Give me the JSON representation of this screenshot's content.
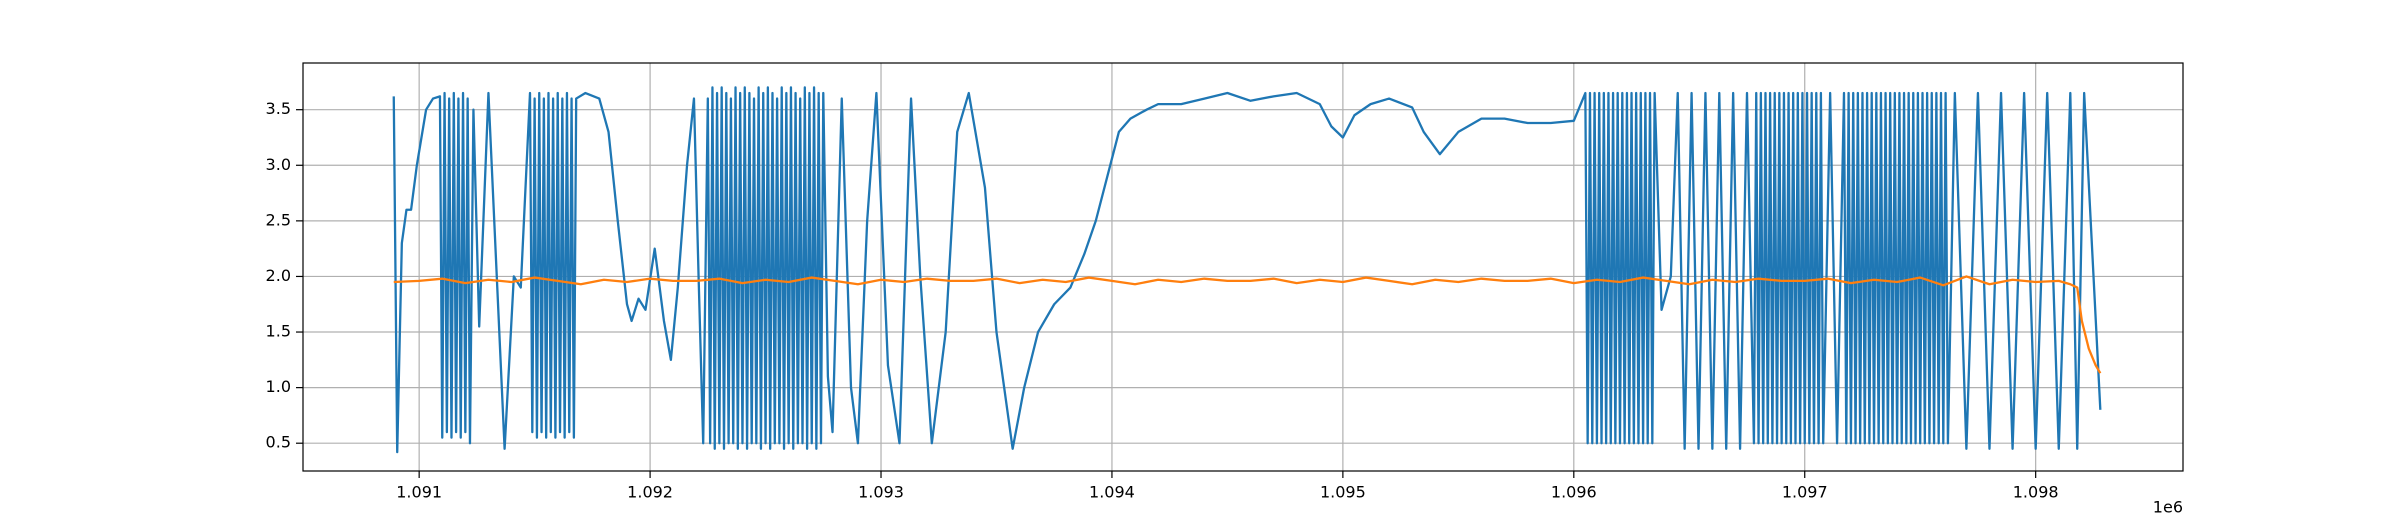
{
  "chart_data": {
    "type": "line",
    "grid": true,
    "xlim": [
      1090497,
      1098638
    ],
    "ylim": [
      0.25,
      3.92
    ],
    "xticks": [
      {
        "value": 1091000,
        "label": "1.091"
      },
      {
        "value": 1092000,
        "label": "1.092"
      },
      {
        "value": 1093000,
        "label": "1.093"
      },
      {
        "value": 1094000,
        "label": "1.094"
      },
      {
        "value": 1095000,
        "label": "1.095"
      },
      {
        "value": 1096000,
        "label": "1.096"
      },
      {
        "value": 1097000,
        "label": "1.097"
      },
      {
        "value": 1098000,
        "label": "1.098"
      }
    ],
    "x_offset_text": "1e6",
    "yticks": [
      0.5,
      {
        "value": 1,
        "label": "1.0"
      },
      1.5,
      {
        "value": 2,
        "label": "2.0"
      },
      2.5,
      {
        "value": 3,
        "label": "3.0"
      },
      3.5
    ],
    "series": [
      {
        "color": "#1f77b4",
        "x": [
          1090890,
          1090905,
          1090925,
          1090945,
          1090965,
          1090990,
          1091030,
          1091060,
          1091090,
          1091100,
          1091110,
          1091120,
          1091130,
          1091140,
          1091150,
          1091160,
          1091170,
          1091180,
          1091190,
          1091200,
          1091210,
          1091220,
          1091235,
          1091260,
          1091300,
          1091370,
          1091410,
          1091440,
          1091480,
          1091490,
          1091500,
          1091510,
          1091520,
          1091530,
          1091540,
          1091550,
          1091560,
          1091570,
          1091580,
          1091590,
          1091600,
          1091610,
          1091620,
          1091630,
          1091640,
          1091650,
          1091660,
          1091670,
          1091680,
          1091720,
          1091780,
          1091820,
          1091860,
          1091900,
          1091920,
          1091950,
          1091980,
          1092020,
          1092060,
          1092090,
          1092120,
          1092160,
          1092190,
          1092210,
          1092230,
          1092250,
          1092260,
          1092270,
          1092280,
          1092290,
          1092300,
          1092310,
          1092320,
          1092330,
          1092340,
          1092350,
          1092360,
          1092370,
          1092380,
          1092390,
          1092400,
          1092410,
          1092420,
          1092430,
          1092440,
          1092450,
          1092460,
          1092470,
          1092480,
          1092490,
          1092500,
          1092510,
          1092520,
          1092530,
          1092540,
          1092550,
          1092560,
          1092570,
          1092580,
          1092590,
          1092600,
          1092610,
          1092620,
          1092630,
          1092640,
          1092650,
          1092660,
          1092670,
          1092680,
          1092690,
          1092700,
          1092710,
          1092720,
          1092730,
          1092740,
          1092750,
          1092770,
          1092790,
          1092830,
          1092870,
          1092900,
          1092940,
          1092980,
          1093030,
          1093080,
          1093130,
          1093170,
          1093220,
          1093280,
          1093330,
          1093380,
          1093450,
          1093500,
          1093570,
          1093620,
          1093680,
          1093750,
          1093820,
          1093880,
          1093930,
          1093980,
          1094030,
          1094080,
          1094150,
          1094200,
          1094300,
          1094400,
          1094500,
          1094600,
          1094700,
          1094800,
          1094900,
          1094950,
          1095000,
          1095050,
          1095120,
          1095200,
          1095300,
          1095350,
          1095420,
          1095500,
          1095600,
          1095700,
          1095800,
          1095900,
          1096000,
          1096050,
          1096060,
          1096070,
          1096080,
          1096090,
          1096100,
          1096110,
          1096120,
          1096130,
          1096140,
          1096150,
          1096160,
          1096170,
          1096180,
          1096190,
          1096200,
          1096210,
          1096220,
          1096230,
          1096240,
          1096250,
          1096260,
          1096270,
          1096280,
          1096290,
          1096300,
          1096310,
          1096320,
          1096330,
          1096340,
          1096350,
          1096380,
          1096420,
          1096450,
          1096480,
          1096510,
          1096540,
          1096570,
          1096600,
          1096630,
          1096660,
          1096690,
          1096720,
          1096750,
          1096780,
          1096790,
          1096800,
          1096810,
          1096820,
          1096830,
          1096840,
          1096850,
          1096860,
          1096870,
          1096880,
          1096890,
          1096900,
          1096910,
          1096920,
          1096930,
          1096940,
          1096950,
          1096960,
          1096970,
          1096980,
          1096990,
          1097000,
          1097010,
          1097020,
          1097030,
          1097040,
          1097050,
          1097060,
          1097070,
          1097080,
          1097110,
          1097140,
          1097170,
          1097180,
          1097190,
          1097200,
          1097210,
          1097220,
          1097230,
          1097240,
          1097250,
          1097260,
          1097270,
          1097280,
          1097290,
          1097300,
          1097310,
          1097320,
          1097330,
          1097340,
          1097350,
          1097360,
          1097370,
          1097380,
          1097390,
          1097400,
          1097410,
          1097420,
          1097430,
          1097440,
          1097450,
          1097460,
          1097470,
          1097480,
          1097490,
          1097500,
          1097510,
          1097520,
          1097530,
          1097540,
          1097550,
          1097560,
          1097570,
          1097580,
          1097590,
          1097600,
          1097610,
          1097620,
          1097650,
          1097700,
          1097750,
          1097800,
          1097850,
          1097900,
          1097950,
          1098000,
          1098050,
          1098100,
          1098150,
          1098180,
          1098210,
          1098280
        ],
        "values": [
          3.62,
          0.42,
          2.3,
          2.6,
          2.6,
          3.0,
          3.5,
          3.6,
          3.62,
          0.55,
          3.65,
          0.6,
          3.6,
          0.55,
          3.65,
          0.6,
          3.6,
          0.55,
          3.65,
          0.6,
          3.6,
          0.5,
          3.5,
          1.55,
          3.65,
          0.45,
          2.0,
          1.9,
          3.65,
          0.6,
          3.6,
          0.55,
          3.65,
          0.6,
          3.6,
          0.55,
          3.65,
          0.6,
          3.6,
          0.55,
          3.65,
          0.6,
          3.6,
          0.55,
          3.65,
          0.6,
          3.6,
          0.55,
          3.6,
          3.65,
          3.6,
          3.3,
          2.5,
          1.75,
          1.6,
          1.8,
          1.7,
          2.25,
          1.6,
          1.25,
          1.9,
          3.0,
          3.6,
          2.0,
          0.5,
          3.6,
          0.5,
          3.7,
          0.45,
          3.65,
          0.5,
          3.7,
          0.45,
          3.65,
          0.5,
          3.6,
          0.5,
          3.7,
          0.45,
          3.65,
          0.5,
          3.7,
          0.45,
          3.65,
          0.5,
          3.6,
          0.5,
          3.7,
          0.45,
          3.65,
          0.5,
          3.7,
          0.45,
          3.65,
          0.5,
          3.6,
          0.5,
          3.7,
          0.45,
          3.65,
          0.5,
          3.7,
          0.45,
          3.65,
          0.5,
          3.6,
          0.5,
          3.7,
          0.45,
          3.65,
          0.5,
          3.7,
          0.45,
          3.65,
          0.5,
          3.65,
          1.1,
          0.6,
          3.6,
          1.0,
          0.5,
          2.5,
          3.65,
          1.2,
          0.5,
          3.6,
          2.0,
          0.5,
          1.5,
          3.3,
          3.65,
          2.8,
          1.5,
          0.45,
          1.0,
          1.5,
          1.75,
          1.9,
          2.2,
          2.5,
          2.9,
          3.3,
          3.42,
          3.5,
          3.55,
          3.55,
          3.6,
          3.65,
          3.58,
          3.62,
          3.65,
          3.55,
          3.35,
          3.25,
          3.45,
          3.55,
          3.6,
          3.52,
          3.3,
          3.1,
          3.3,
          3.42,
          3.42,
          3.38,
          3.38,
          3.4,
          3.65,
          0.5,
          3.65,
          0.5,
          3.65,
          0.5,
          3.65,
          0.5,
          3.65,
          0.5,
          3.65,
          0.5,
          3.65,
          0.5,
          3.65,
          0.5,
          3.65,
          0.5,
          3.65,
          0.5,
          3.65,
          0.5,
          3.65,
          0.5,
          3.65,
          0.5,
          3.65,
          0.5,
          3.65,
          0.5,
          3.65,
          1.7,
          2.0,
          3.65,
          0.45,
          3.65,
          0.45,
          3.65,
          0.45,
          3.65,
          0.45,
          3.65,
          0.45,
          3.65,
          0.5,
          3.65,
          0.5,
          3.65,
          0.5,
          3.65,
          0.5,
          3.65,
          0.5,
          3.65,
          0.5,
          3.65,
          0.5,
          3.65,
          0.5,
          3.65,
          0.5,
          3.65,
          0.5,
          3.65,
          0.5,
          3.65,
          0.5,
          3.65,
          0.5,
          3.65,
          0.5,
          3.65,
          0.5,
          3.65,
          0.5,
          3.65,
          0.5,
          3.65,
          0.5,
          3.65,
          0.5,
          3.65,
          0.5,
          3.65,
          0.5,
          3.65,
          0.5,
          3.65,
          0.5,
          3.65,
          0.5,
          3.65,
          0.5,
          3.65,
          0.5,
          3.65,
          0.5,
          3.65,
          0.5,
          3.65,
          0.5,
          3.65,
          0.5,
          3.65,
          0.5,
          3.65,
          0.5,
          3.65,
          0.5,
          3.65,
          0.5,
          3.65,
          0.5,
          3.65,
          0.5,
          3.65,
          0.5,
          3.65,
          0.5,
          3.65,
          0.5,
          3.65,
          0.5,
          3.65,
          0.45,
          3.65,
          0.45,
          3.65,
          0.45,
          3.65,
          0.45,
          3.65,
          0.45,
          3.65,
          0.45,
          3.65,
          0.8
        ]
      },
      {
        "color": "#ff7f0e",
        "x": [
          1090890,
          1091000,
          1091100,
          1091200,
          1091300,
          1091400,
          1091500,
          1091600,
          1091700,
          1091800,
          1091900,
          1092000,
          1092100,
          1092200,
          1092300,
          1092400,
          1092500,
          1092600,
          1092700,
          1092800,
          1092900,
          1093000,
          1093100,
          1093200,
          1093300,
          1093400,
          1093500,
          1093600,
          1093700,
          1093800,
          1093900,
          1094000,
          1094100,
          1094200,
          1094300,
          1094400,
          1094500,
          1094600,
          1094700,
          1094800,
          1094900,
          1095000,
          1095100,
          1095200,
          1095300,
          1095400,
          1095500,
          1095600,
          1095700,
          1095800,
          1095900,
          1096000,
          1096100,
          1096200,
          1096300,
          1096400,
          1096500,
          1096600,
          1096700,
          1096800,
          1096900,
          1097000,
          1097100,
          1097200,
          1097300,
          1097400,
          1097500,
          1097600,
          1097700,
          1097800,
          1097900,
          1098000,
          1098100,
          1098150,
          1098180,
          1098200,
          1098230,
          1098260,
          1098280
        ],
        "values": [
          1.95,
          1.96,
          1.98,
          1.94,
          1.97,
          1.95,
          1.99,
          1.96,
          1.93,
          1.97,
          1.95,
          1.98,
          1.96,
          1.96,
          1.98,
          1.94,
          1.97,
          1.95,
          1.99,
          1.96,
          1.93,
          1.97,
          1.95,
          1.98,
          1.96,
          1.96,
          1.98,
          1.94,
          1.97,
          1.95,
          1.99,
          1.96,
          1.93,
          1.97,
          1.95,
          1.98,
          1.96,
          1.96,
          1.98,
          1.94,
          1.97,
          1.95,
          1.99,
          1.96,
          1.93,
          1.97,
          1.95,
          1.98,
          1.96,
          1.96,
          1.98,
          1.94,
          1.97,
          1.95,
          1.99,
          1.96,
          1.93,
          1.97,
          1.95,
          1.98,
          1.96,
          1.96,
          1.98,
          1.94,
          1.97,
          1.95,
          1.99,
          1.92,
          2.0,
          1.93,
          1.97,
          1.95,
          1.96,
          1.93,
          1.9,
          1.6,
          1.35,
          1.2,
          1.13
        ]
      }
    ]
  }
}
